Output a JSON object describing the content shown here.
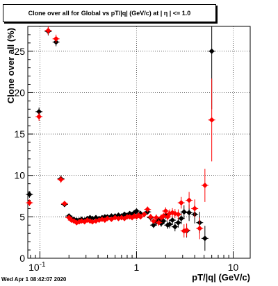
{
  "chart_data": {
    "type": "scatter",
    "title": "Clone  over all for Global vs pT/|q| (GeV/c) at |  η |  <= 1.0",
    "xlabel": "pT/|q| (GeV/c)",
    "ylabel": "Clone  over all (%)",
    "xscale": "log",
    "xlim": [
      0.075,
      15
    ],
    "ylim": [
      0,
      28
    ],
    "x_ticks": [
      {
        "v": 0.1,
        "label": "10",
        "sup": "-1"
      },
      {
        "v": 1,
        "label": "1"
      },
      {
        "v": 10,
        "label": "10"
      }
    ],
    "y_ticks": [
      0,
      5,
      10,
      15,
      20,
      25
    ],
    "grid": true,
    "legend": "none",
    "series": [
      {
        "color": "#000000",
        "marker": "diamond",
        "points": [
          [
            0.078,
            7.7,
            0.4
          ],
          [
            0.098,
            17.7,
            0.5
          ],
          [
            0.122,
            27.4,
            0.5
          ],
          [
            0.147,
            26.1,
            0.5
          ],
          [
            0.165,
            9.6,
            0.4
          ],
          [
            0.18,
            6.5,
            0.3
          ],
          [
            0.2,
            5.1,
            0.25
          ],
          [
            0.212,
            4.8,
            0.2
          ],
          [
            0.225,
            4.7,
            0.2
          ],
          [
            0.24,
            4.6,
            0.2
          ],
          [
            0.255,
            4.6,
            0.2
          ],
          [
            0.27,
            4.7,
            0.2
          ],
          [
            0.29,
            4.6,
            0.2
          ],
          [
            0.31,
            4.8,
            0.2
          ],
          [
            0.33,
            4.9,
            0.2
          ],
          [
            0.35,
            4.8,
            0.2
          ],
          [
            0.38,
            4.9,
            0.2
          ],
          [
            0.41,
            4.8,
            0.2
          ],
          [
            0.44,
            4.9,
            0.2
          ],
          [
            0.47,
            5.0,
            0.2
          ],
          [
            0.5,
            5.0,
            0.2
          ],
          [
            0.55,
            5.1,
            0.2
          ],
          [
            0.6,
            5.1,
            0.2
          ],
          [
            0.65,
            5.2,
            0.25
          ],
          [
            0.7,
            5.1,
            0.25
          ],
          [
            0.75,
            5.3,
            0.25
          ],
          [
            0.8,
            5.2,
            0.25
          ],
          [
            0.85,
            5.4,
            0.3
          ],
          [
            0.9,
            5.3,
            0.3
          ],
          [
            0.95,
            5.5,
            0.3
          ],
          [
            1.0,
            5.7,
            0.3
          ],
          [
            1.05,
            5.2,
            0.3
          ],
          [
            1.1,
            5.4,
            0.3
          ],
          [
            1.2,
            5.3,
            0.3
          ],
          [
            1.3,
            5.6,
            0.3
          ],
          [
            1.4,
            4.9,
            0.35
          ],
          [
            1.5,
            4.0,
            0.35
          ],
          [
            1.6,
            4.4,
            0.4
          ],
          [
            1.7,
            4.6,
            0.4
          ],
          [
            1.8,
            4.2,
            0.4
          ],
          [
            1.9,
            4.5,
            0.4
          ],
          [
            2.0,
            5.2,
            0.45
          ],
          [
            2.1,
            4.0,
            0.45
          ],
          [
            2.2,
            4.1,
            0.5
          ],
          [
            2.35,
            4.6,
            0.55
          ],
          [
            2.5,
            3.8,
            0.55
          ],
          [
            2.7,
            4.3,
            0.6
          ],
          [
            2.9,
            4.8,
            0.7
          ],
          [
            3.1,
            5.6,
            0.8
          ],
          [
            3.3,
            3.3,
            0.8
          ],
          [
            3.5,
            5.5,
            1.0
          ],
          [
            4.0,
            5.3,
            1.1
          ],
          [
            4.5,
            4.3,
            1.3
          ],
          [
            5.1,
            2.4,
            1.5
          ],
          [
            6.0,
            25.0,
            7.0
          ]
        ]
      },
      {
        "color": "#ff0000",
        "marker": "diamond",
        "points": [
          [
            0.078,
            6.7,
            0.4
          ],
          [
            0.098,
            17.1,
            0.5
          ],
          [
            0.122,
            27.5,
            0.5
          ],
          [
            0.147,
            26.5,
            0.5
          ],
          [
            0.165,
            9.5,
            0.4
          ],
          [
            0.18,
            6.6,
            0.3
          ],
          [
            0.2,
            4.9,
            0.25
          ],
          [
            0.212,
            4.6,
            0.2
          ],
          [
            0.225,
            4.5,
            0.2
          ],
          [
            0.24,
            4.3,
            0.2
          ],
          [
            0.255,
            4.4,
            0.2
          ],
          [
            0.27,
            4.5,
            0.2
          ],
          [
            0.29,
            4.4,
            0.2
          ],
          [
            0.31,
            4.6,
            0.2
          ],
          [
            0.33,
            4.5,
            0.2
          ],
          [
            0.35,
            4.4,
            0.2
          ],
          [
            0.38,
            4.5,
            0.2
          ],
          [
            0.41,
            4.6,
            0.2
          ],
          [
            0.44,
            4.7,
            0.2
          ],
          [
            0.47,
            4.6,
            0.2
          ],
          [
            0.5,
            4.8,
            0.2
          ],
          [
            0.55,
            4.7,
            0.2
          ],
          [
            0.6,
            4.9,
            0.2
          ],
          [
            0.65,
            4.8,
            0.25
          ],
          [
            0.7,
            4.9,
            0.25
          ],
          [
            0.75,
            4.8,
            0.25
          ],
          [
            0.8,
            5.0,
            0.25
          ],
          [
            0.85,
            5.0,
            0.3
          ],
          [
            0.9,
            4.9,
            0.3
          ],
          [
            0.95,
            5.1,
            0.3
          ],
          [
            1.0,
            5.0,
            0.3
          ],
          [
            1.05,
            5.2,
            0.3
          ],
          [
            1.1,
            5.0,
            0.3
          ],
          [
            1.2,
            5.3,
            0.3
          ],
          [
            1.3,
            5.9,
            0.35
          ],
          [
            1.4,
            5.0,
            0.35
          ],
          [
            1.5,
            4.5,
            0.35
          ],
          [
            1.6,
            4.9,
            0.4
          ],
          [
            1.7,
            4.3,
            0.4
          ],
          [
            1.8,
            4.9,
            0.4
          ],
          [
            1.9,
            5.1,
            0.4
          ],
          [
            2.0,
            5.7,
            0.45
          ],
          [
            2.1,
            5.0,
            0.45
          ],
          [
            2.2,
            5.4,
            0.5
          ],
          [
            2.35,
            5.5,
            0.55
          ],
          [
            2.5,
            5.4,
            0.55
          ],
          [
            2.7,
            5.3,
            0.6
          ],
          [
            2.9,
            6.7,
            0.7
          ],
          [
            3.1,
            3.3,
            0.8
          ],
          [
            3.3,
            3.4,
            0.8
          ],
          [
            3.5,
            7.0,
            1.0
          ],
          [
            4.0,
            6.0,
            1.1
          ],
          [
            4.5,
            3.6,
            1.3
          ],
          [
            5.1,
            8.8,
            2.0
          ],
          [
            6.0,
            16.7,
            5.0
          ]
        ]
      }
    ]
  },
  "footer": {
    "timestamp": "Wed Apr  1 08:42:07 2020"
  }
}
